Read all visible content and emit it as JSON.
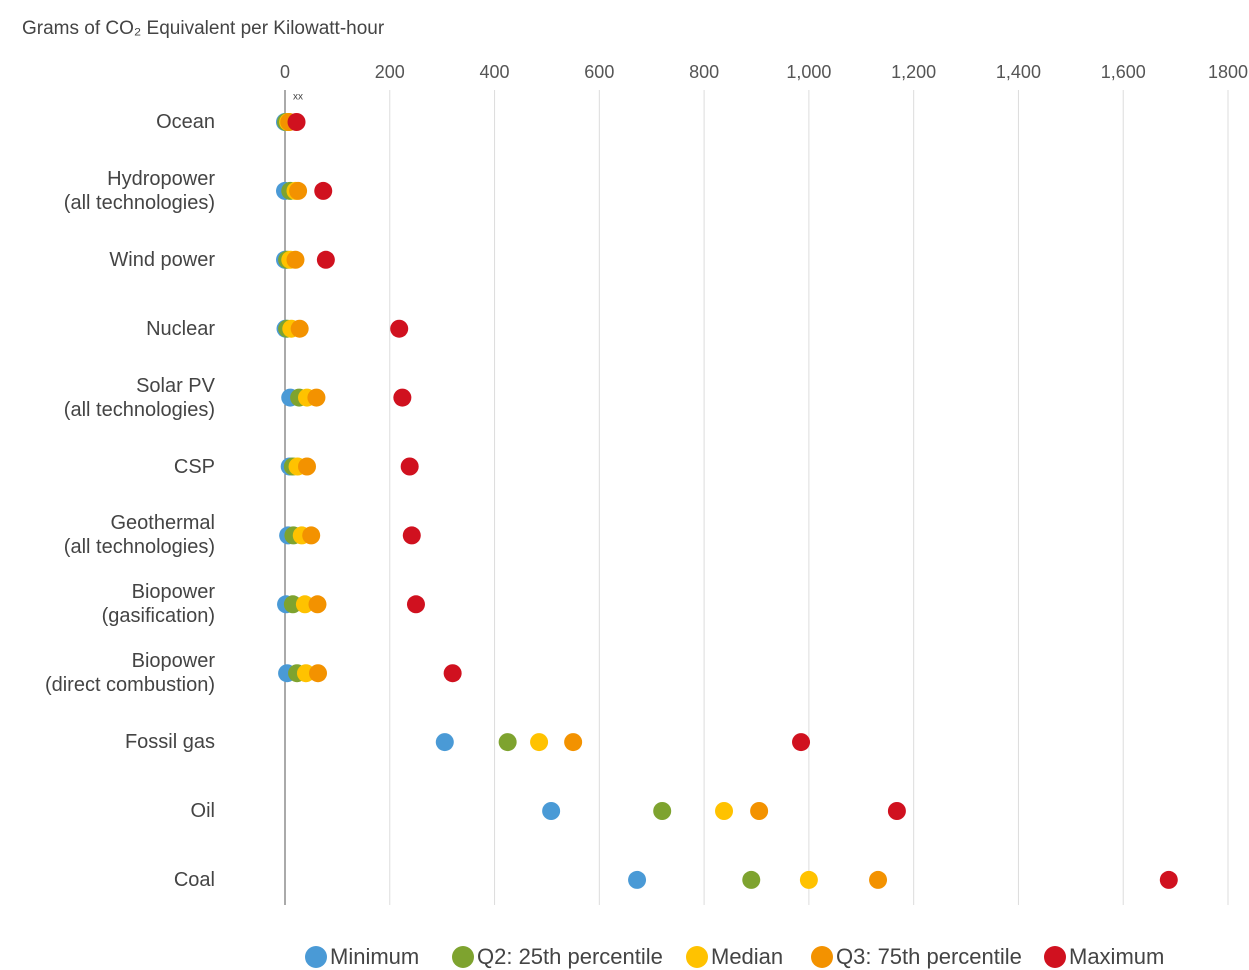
{
  "chart_data": {
    "type": "dot",
    "title": "Grams of CO₂ Equivalent per Kilowatt-hour",
    "annotations": [
      "xx"
    ],
    "categories": [
      "Ocean",
      "Hydropower\n(all technologies)",
      "Wind power",
      "Nuclear",
      "Solar PV\n(all technologies)",
      "CSP",
      "Geothermal\n(all technologies)",
      "Biopower\n(gasification)",
      "Biopower\n(direct combustion)",
      "Fossil gas",
      "Oil",
      "Coal"
    ],
    "series": [
      {
        "name": "Minimum",
        "color": "#4a9ad6",
        "values": [
          0,
          0,
          0,
          1,
          10,
          9,
          6,
          2,
          4,
          305,
          508,
          672
        ]
      },
      {
        "name": "Q2: 25th percentile",
        "color": "#7ea32f",
        "values": [
          2,
          10,
          4,
          4,
          27,
          15,
          16,
          15,
          23,
          425,
          720,
          890
        ]
      },
      {
        "name": "Median",
        "color": "#ffc200",
        "values": [
          6,
          20,
          10,
          12,
          42,
          24,
          32,
          38,
          40,
          485,
          838,
          1000
        ]
      },
      {
        "name": "Q3: 75th percentile",
        "color": "#f39200",
        "values": [
          8,
          25,
          20,
          28,
          60,
          42,
          50,
          62,
          63,
          550,
          905,
          1132
        ]
      },
      {
        "name": "Maximum",
        "color": "#d0111f",
        "values": [
          22,
          73,
          78,
          218,
          224,
          238,
          242,
          250,
          320,
          985,
          1168,
          1687
        ]
      }
    ],
    "xlim": [
      0,
      1800
    ],
    "xticks": [
      0,
      200,
      400,
      600,
      800,
      {
        "value": 1000,
        "label": "1,000"
      },
      {
        "value": 1200,
        "label": "1,200"
      },
      {
        "value": 1400,
        "label": "1,400"
      },
      {
        "value": 1600,
        "label": "1,600"
      },
      1800
    ],
    "grid": true,
    "legend": "bottom"
  }
}
